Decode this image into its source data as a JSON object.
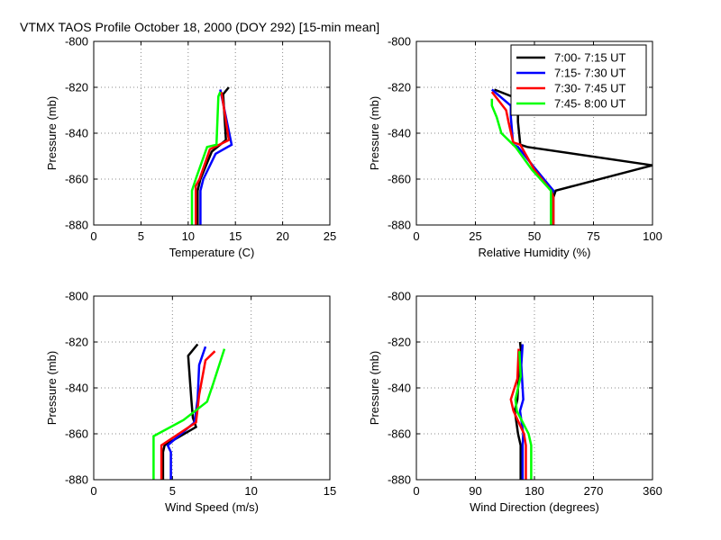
{
  "title": "VTMX TAOS Profile   October 18, 2000 (DOY 292) [15-min mean]",
  "colors": {
    "black": "#000000",
    "blue": "#0000ff",
    "red": "#ff0000",
    "green": "#00ff00",
    "grid": "#888888"
  },
  "chart_data": [
    {
      "type": "line",
      "id": "temp",
      "xlabel": "Temperature (C)",
      "ylabel": "Pressure (mb)",
      "xlim": [
        0,
        25
      ],
      "ylim": [
        -880,
        -800
      ],
      "xticks": [
        0,
        5,
        10,
        15,
        20,
        25
      ],
      "xticklabels": [
        "0",
        "5",
        "10",
        "15",
        "20",
        "25"
      ],
      "yticks": [
        -880,
        -860,
        -840,
        -820,
        -800
      ],
      "yticklabels": [
        "-880",
        "-860",
        "-840",
        "-820",
        "-800"
      ],
      "series": [
        {
          "name": "7:00- 7:15 UT",
          "color": "#000000",
          "x": [
            11.0,
            11.0,
            11.3,
            12.5,
            14.0,
            13.7,
            14.3
          ],
          "y": [
            -880,
            -865,
            -860,
            -848,
            -843,
            -823,
            -820
          ]
        },
        {
          "name": "7:15- 7:30 UT",
          "color": "#0000ff",
          "x": [
            11.3,
            11.3,
            11.6,
            12.9,
            14.6,
            13.5,
            13.4
          ],
          "y": [
            -880,
            -865,
            -860,
            -849,
            -845,
            -823,
            -821
          ]
        },
        {
          "name": "7:30- 7:45 UT",
          "color": "#ff0000",
          "x": [
            10.8,
            10.8,
            11.2,
            12.3,
            14.3,
            13.6,
            13.5
          ],
          "y": [
            -880,
            -863,
            -860,
            -847,
            -843,
            -824,
            -822
          ]
        },
        {
          "name": "7:45- 8:00 UT",
          "color": "#00ff00",
          "x": [
            10.4,
            10.4,
            10.8,
            12.0,
            13.0,
            13.2,
            13.4
          ],
          "y": [
            -880,
            -865,
            -860,
            -846,
            -845,
            -824,
            -822
          ]
        }
      ]
    },
    {
      "type": "line",
      "id": "rh",
      "xlabel": "Relative Humidity (%)",
      "ylabel": "Pressure (mb)",
      "xlim": [
        0,
        100
      ],
      "ylim": [
        -880,
        -800
      ],
      "xticks": [
        0,
        25,
        50,
        75,
        100
      ],
      "xticklabels": [
        "0",
        "25",
        "50",
        "75",
        "100"
      ],
      "yticks": [
        -880,
        -860,
        -840,
        -820,
        -800
      ],
      "yticklabels": [
        "-880",
        "-860",
        "-840",
        "-820",
        "-800"
      ],
      "series": [
        {
          "name": "7:00- 7:15 UT",
          "color": "#000000",
          "x": [
            58,
            58,
            59,
            100,
            47,
            44,
            43,
            43,
            33
          ],
          "y": [
            -880,
            -868,
            -865,
            -854,
            -846,
            -845,
            -835,
            -825,
            -821
          ]
        },
        {
          "name": "7:15- 7:30 UT",
          "color": "#0000ff",
          "x": [
            57,
            57,
            58,
            50,
            43,
            41,
            40,
            40,
            32
          ],
          "y": [
            -880,
            -868,
            -865,
            -855,
            -846,
            -845,
            -833,
            -828,
            -821
          ]
        },
        {
          "name": "7:30- 7:45 UT",
          "color": "#ff0000",
          "x": [
            58,
            58,
            57,
            50,
            44,
            41,
            39,
            38,
            32
          ],
          "y": [
            -880,
            -868,
            -865,
            -856,
            -845,
            -844,
            -835,
            -830,
            -822
          ]
        },
        {
          "name": "7:45- 8:00 UT",
          "color": "#00ff00",
          "x": [
            57,
            57,
            57,
            49,
            42,
            36,
            34,
            32,
            32
          ],
          "y": [
            -880,
            -868,
            -865,
            -856,
            -846,
            -840,
            -833,
            -828,
            -825
          ]
        }
      ],
      "legend": {
        "location": "top-right",
        "entries": [
          "7:00- 7:15 UT",
          "7:15- 7:30 UT",
          "7:30- 7:45 UT",
          "7:45- 8:00 UT"
        ],
        "colors": [
          "#000000",
          "#0000ff",
          "#ff0000",
          "#00ff00"
        ]
      }
    },
    {
      "type": "line",
      "id": "ws",
      "xlabel": "Wind Speed (m/s)",
      "ylabel": "Pressure (mb)",
      "xlim": [
        0,
        15
      ],
      "ylim": [
        -880,
        -800
      ],
      "xticks": [
        0,
        5,
        10,
        15
      ],
      "xticklabels": [
        "0",
        "5",
        "10",
        "15"
      ],
      "yticks": [
        -880,
        -860,
        -840,
        -820,
        -800
      ],
      "yticklabels": [
        "-880",
        "-860",
        "-840",
        "-820",
        "-800"
      ],
      "series": [
        {
          "name": "7:00- 7:15 UT",
          "color": "#000000",
          "x": [
            4.4,
            4.4,
            4.5,
            6.5,
            6.3,
            6.2,
            6.0,
            6.6
          ],
          "y": [
            -880,
            -868,
            -865,
            -857,
            -853,
            -845,
            -826,
            -821
          ]
        },
        {
          "name": "7:15- 7:30 UT",
          "color": "#0000ff",
          "x": [
            4.9,
            4.9,
            4.7,
            6.4,
            6.6,
            6.7,
            7.1
          ],
          "y": [
            -880,
            -868,
            -865,
            -855,
            -845,
            -830,
            -822
          ]
        },
        {
          "name": "7:30- 7:45 UT",
          "color": "#ff0000",
          "x": [
            4.3,
            4.3,
            4.3,
            6.5,
            6.7,
            7.1,
            7.7
          ],
          "y": [
            -880,
            -868,
            -865,
            -855,
            -843,
            -828,
            -824
          ]
        },
        {
          "name": "7:45- 8:00 UT",
          "color": "#00ff00",
          "x": [
            3.8,
            3.8,
            3.8,
            5.7,
            7.2,
            7.6,
            8.3
          ],
          "y": [
            -880,
            -868,
            -861,
            -854,
            -846,
            -838,
            -823
          ]
        }
      ]
    },
    {
      "type": "line",
      "id": "wd",
      "xlabel": "Wind Direction (degrees)",
      "ylabel": "Pressure (mb)",
      "xlim": [
        0,
        360
      ],
      "ylim": [
        -880,
        -800
      ],
      "xticks": [
        0,
        90,
        180,
        270,
        360
      ],
      "xticklabels": [
        "0",
        "90",
        "180",
        "270",
        "360"
      ],
      "yticks": [
        -880,
        -860,
        -840,
        -820,
        -800
      ],
      "yticklabels": [
        "-880",
        "-860",
        "-840",
        "-820",
        "-800"
      ],
      "series": [
        {
          "name": "7:00- 7:15 UT",
          "color": "#000000",
          "x": [
            159,
            159,
            155,
            150,
            154,
            156,
            160,
            158
          ],
          "y": [
            -880,
            -865,
            -860,
            -850,
            -845,
            -835,
            -825,
            -820
          ]
        },
        {
          "name": "7:15- 7:30 UT",
          "color": "#0000ff",
          "x": [
            162,
            162,
            163,
            158,
            163,
            160,
            162
          ],
          "y": [
            -880,
            -865,
            -860,
            -850,
            -845,
            -830,
            -821
          ]
        },
        {
          "name": "7:30- 7:45 UT",
          "color": "#ff0000",
          "x": [
            167,
            167,
            164,
            148,
            144,
            154,
            156
          ],
          "y": [
            -880,
            -865,
            -860,
            -850,
            -845,
            -836,
            -823
          ]
        },
        {
          "name": "7:45- 8:00 UT",
          "color": "#00ff00",
          "x": [
            175,
            175,
            171,
            153,
            151,
            159,
            157
          ],
          "y": [
            -880,
            -865,
            -860,
            -850,
            -845,
            -835,
            -824
          ]
        }
      ]
    }
  ]
}
